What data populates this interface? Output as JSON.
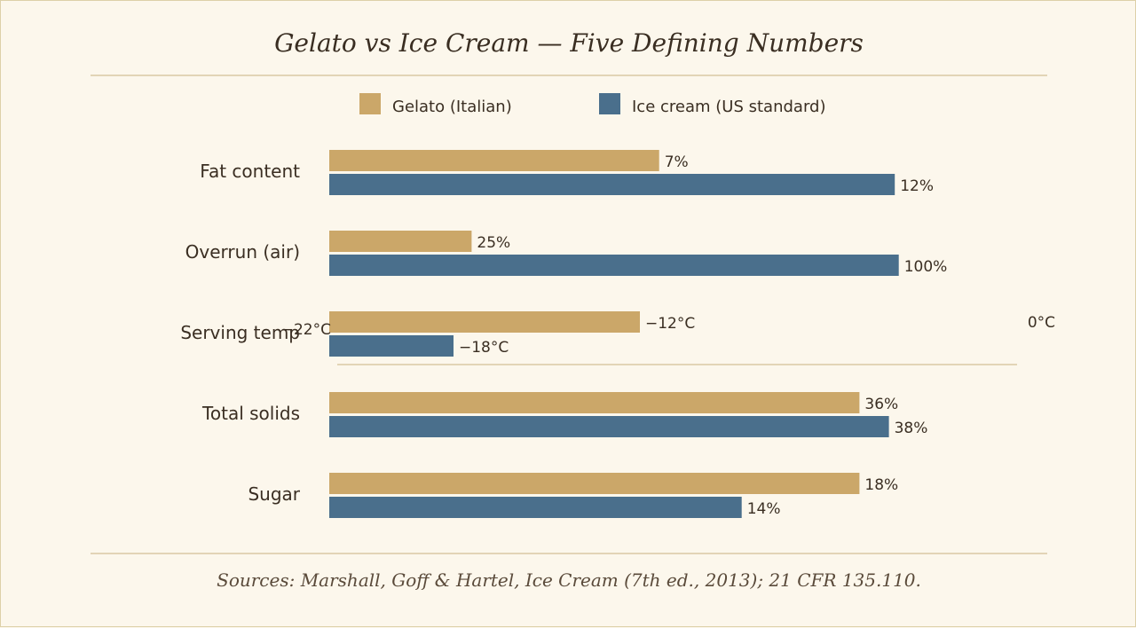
{
  "colors": {
    "gelato": "#cba769",
    "icecream": "#4a6f8c",
    "rule": "#d9c9a3",
    "text": "#3a2e22"
  },
  "chart_data": {
    "type": "bar",
    "orientation": "horizontal",
    "title": "Gelato vs Ice Cream — Five Defining Numbers",
    "source": "Sources: Marshall, Goff & Hartel, Ice Cream (7th ed., 2013); 21 CFR 135.110.",
    "legend_placement": "top-center",
    "grid": false,
    "series": [
      {
        "name": "Gelato (Italian)",
        "color": "#cba769"
      },
      {
        "name": "Ice cream (US standard)",
        "color": "#4a6f8c"
      }
    ],
    "categories": [
      {
        "label": "Fat content",
        "xlim": [
          0,
          14.5
        ],
        "values": [
          7,
          12
        ],
        "value_labels": [
          "7%",
          "12%"
        ]
      },
      {
        "label": "Overrun (air)",
        "xlim": [
          0,
          120
        ],
        "values": [
          25,
          100
        ],
        "value_labels": [
          "25%",
          "100%"
        ]
      },
      {
        "label": "Serving temp",
        "xlim": [
          -22,
          0
        ],
        "axis_labels": [
          "−22°C",
          "0°C"
        ],
        "values": [
          -12,
          -18
        ],
        "value_labels": [
          "−12°C",
          "−18°C"
        ]
      },
      {
        "label": "Total solids",
        "xlim": [
          0,
          46.4
        ],
        "values": [
          36,
          38
        ],
        "value_labels": [
          "36%",
          "38%"
        ]
      },
      {
        "label": "Sugar",
        "xlim": [
          0,
          23.2
        ],
        "values": [
          18,
          14
        ],
        "value_labels": [
          "18%",
          "14%"
        ]
      }
    ]
  }
}
